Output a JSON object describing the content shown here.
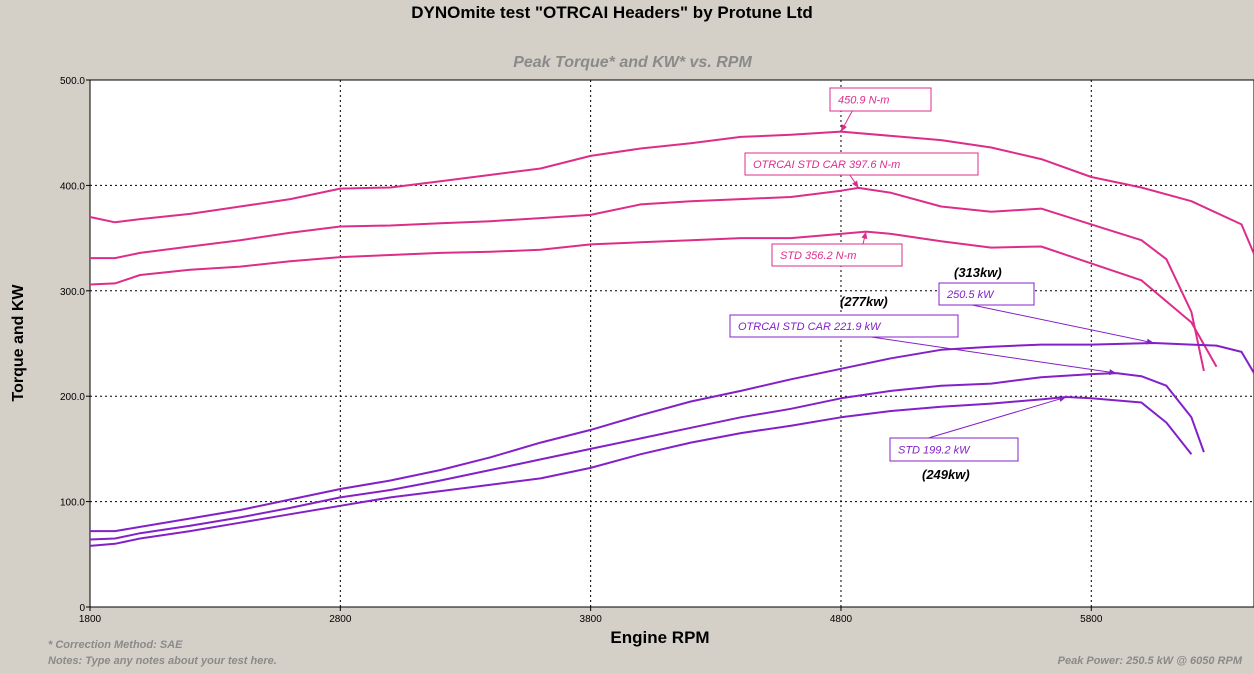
{
  "title": "DYNOmite test \"OTRCAI Headers\" by Protune Ltd",
  "notes": {
    "correction": "* Correction Method: SAE",
    "notes_line": "Notes: Type any notes about your test here.",
    "peak_power": "Peak Power: 250.5 kW @ 6050 RPM"
  },
  "colors": {
    "torque": "#dd2d8a",
    "power": "#8420c8",
    "grid": "#000000",
    "background": "#d4d0c8",
    "plot_bg": "#ffffff"
  },
  "chart_data": {
    "type": "line",
    "title": "DYNOmite test \"OTRCAI Headers\" by Protune Ltd",
    "subtitle": "Peak Torque* and KW* vs. RPM",
    "xlabel": "Engine RPM",
    "ylabel": "Torque and KW",
    "xlim": [
      1800,
      6450
    ],
    "ylim": [
      0,
      500
    ],
    "xticks": [
      1800,
      2800,
      3800,
      4800,
      5800
    ],
    "xtick_labels": [
      "1800",
      "2800",
      "3800",
      "4800",
      "5800"
    ],
    "yticks": [
      0,
      100,
      200,
      300,
      400,
      500
    ],
    "ytick_labels": [
      "0",
      "100.0",
      "200.0",
      "300.0",
      "400.0",
      "500.0"
    ],
    "grid": true,
    "series": [
      {
        "kind": "torque",
        "x": [
          1800,
          1900,
          2000,
          2200,
          2400,
          2600,
          2800,
          3000,
          3200,
          3400,
          3600,
          3800,
          4000,
          4200,
          4400,
          4600,
          4800,
          5000,
          5200,
          5400,
          5600,
          5800,
          6000,
          6200,
          6400,
          6450
        ],
        "y": [
          370,
          365,
          368,
          373,
          380,
          387,
          397,
          398,
          404,
          410,
          416,
          428,
          435,
          440,
          446,
          448,
          451,
          447,
          443,
          436,
          425,
          408,
          398,
          385,
          363,
          335
        ]
      },
      {
        "kind": "torque",
        "x": [
          1800,
          1900,
          2000,
          2200,
          2400,
          2600,
          2800,
          3000,
          3200,
          3400,
          3600,
          3800,
          4000,
          4200,
          4400,
          4600,
          4800,
          4870,
          5000,
          5200,
          5400,
          5600,
          5800,
          6000,
          6100,
          6200,
          6250
        ],
        "y": [
          331,
          331,
          336,
          342,
          348,
          355,
          361,
          362,
          364,
          366,
          369,
          372,
          382,
          385,
          387,
          389,
          395,
          397.6,
          393,
          380,
          375,
          378,
          363,
          348,
          330,
          280,
          224
        ]
      },
      {
        "kind": "torque",
        "x": [
          1800,
          1900,
          2000,
          2200,
          2400,
          2600,
          2800,
          3000,
          3200,
          3400,
          3600,
          3800,
          4000,
          4200,
          4400,
          4600,
          4800,
          4900,
          5000,
          5200,
          5400,
          5600,
          5800,
          6000,
          6200,
          6300
        ],
        "y": [
          306,
          307,
          315,
          320,
          323,
          328,
          332,
          334,
          336,
          337,
          339,
          344,
          346,
          348,
          350,
          350,
          354,
          356.2,
          354,
          347,
          341,
          342,
          326,
          310,
          270,
          228
        ]
      },
      {
        "kind": "power",
        "x": [
          1800,
          1900,
          2000,
          2200,
          2400,
          2600,
          2800,
          3000,
          3200,
          3400,
          3600,
          3800,
          4000,
          4200,
          4400,
          4600,
          4800,
          5000,
          5200,
          5400,
          5600,
          5800,
          6050,
          6200,
          6300,
          6400,
          6450
        ],
        "y": [
          72,
          72,
          76,
          84,
          92,
          102,
          112,
          120,
          130,
          142,
          156,
          168,
          182,
          195,
          205,
          216,
          226,
          236,
          244,
          247,
          249,
          249,
          250.5,
          249,
          248,
          242,
          222
        ]
      },
      {
        "kind": "power",
        "x": [
          1800,
          1900,
          2000,
          2200,
          2400,
          2600,
          2800,
          3000,
          3200,
          3400,
          3600,
          3800,
          4000,
          4200,
          4400,
          4600,
          4800,
          5000,
          5200,
          5400,
          5600,
          5800,
          5900,
          6000,
          6100,
          6200,
          6250
        ],
        "y": [
          64,
          65,
          70,
          77,
          85,
          94,
          104,
          111,
          120,
          130,
          140,
          150,
          160,
          170,
          180,
          188,
          198,
          205,
          210,
          212,
          218,
          221,
          221.9,
          219,
          210,
          180,
          147
        ]
      },
      {
        "kind": "power",
        "x": [
          1800,
          1900,
          2000,
          2200,
          2400,
          2600,
          2800,
          3000,
          3200,
          3400,
          3600,
          3800,
          4000,
          4200,
          4400,
          4600,
          4800,
          5000,
          5200,
          5400,
          5600,
          5700,
          5800,
          6000,
          6100,
          6200
        ],
        "y": [
          58,
          60,
          65,
          72,
          80,
          88,
          96,
          104,
          110,
          116,
          122,
          132,
          145,
          156,
          165,
          172,
          180,
          186,
          190,
          193,
          197,
          199.2,
          198,
          194,
          175,
          145
        ]
      }
    ],
    "labels": [
      {
        "text": "450.9 N-m",
        "kind": "torque",
        "point": [
          4800,
          450.9
        ]
      },
      {
        "text": "OTRCAI STD CAR 397.6 N-m",
        "kind": "torque",
        "point": [
          4870,
          397.6
        ]
      },
      {
        "text": "STD 356.2 N-m",
        "kind": "torque",
        "point": [
          4900,
          356.2
        ]
      },
      {
        "text": "250.5 kW",
        "kind": "power",
        "point": [
          6050,
          250.5
        ]
      },
      {
        "text": "OTRCAI STD CAR 221.9 kW",
        "kind": "power",
        "point": [
          5900,
          221.9
        ]
      },
      {
        "text": "STD 199.2 kW",
        "kind": "power",
        "point": [
          5700,
          199.2
        ]
      }
    ],
    "annotations": [
      "(313kw)",
      "(277kw)",
      "(249kw)"
    ]
  }
}
